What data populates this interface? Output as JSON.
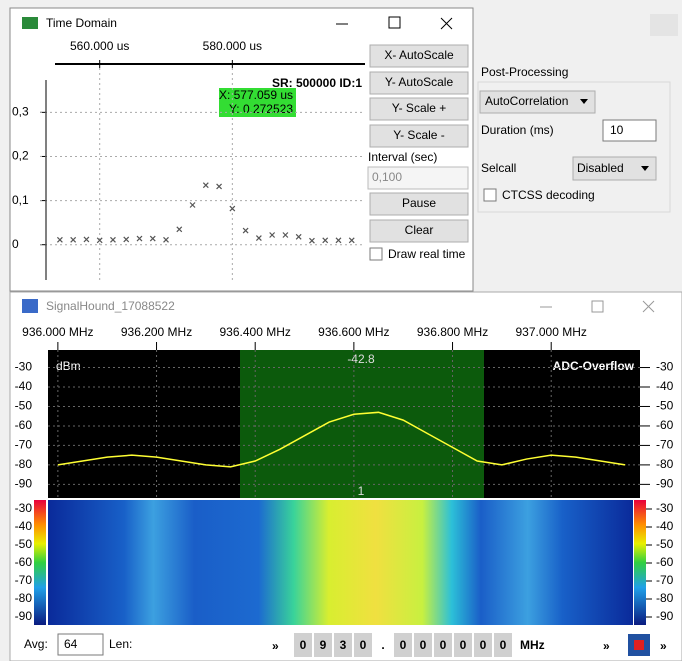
{
  "time_domain": {
    "title": "Time Domain",
    "buttons": [
      "X- AutoScale",
      "Y- AutoScale",
      "Y- Scale +",
      "Y- Scale -"
    ],
    "interval_label": "Interval (sec)",
    "interval_value": "0,100",
    "pause": "Pause",
    "clear": "Clear",
    "draw_real_time": "Draw real time",
    "sr_label": "SR: 500000 ID:1",
    "cursor_x": "X: 577.059 us",
    "cursor_y": "Y: 0.272523"
  },
  "post_processing": {
    "title": "Post-Processing",
    "mode": "AutoCorrelation",
    "duration_label": "Duration (ms)",
    "duration": "10",
    "selcall_label": "Selcall",
    "selcall": "Disabled",
    "ctcss": "CTCSS decoding"
  },
  "signalhound": {
    "title": "SignalHound_17088522",
    "unit_label": "dBm",
    "overflow": "ADC-Overflow",
    "marker": "-42.8",
    "marker_index": "1",
    "avg_label": "Avg:",
    "avg": "64",
    "len_label": "Len:",
    "freq_digits": [
      "0",
      "9",
      "3",
      "0",
      ".",
      "0",
      "0",
      "0",
      "0",
      "0",
      "0"
    ],
    "freq_unit": "MHz",
    "more": "»"
  },
  "chart_data": [
    {
      "type": "scatter",
      "color": "#555555",
      "x": [
        554,
        556,
        558,
        560,
        562,
        564,
        566,
        568,
        570,
        572,
        574,
        576,
        578,
        580,
        582,
        584,
        586,
        588,
        590,
        592,
        594,
        596,
        598
      ],
      "values": [
        0.011,
        0.011,
        0.012,
        0.01,
        0.011,
        0.012,
        0.014,
        0.014,
        0.011,
        0.035,
        0.09,
        0.135,
        0.132,
        0.082,
        0.032,
        0.015,
        0.022,
        0.022,
        0.018,
        0.009,
        0.01,
        0.01,
        0.01
      ],
      "xlim": [
        551,
        600
      ],
      "xticks": [
        {
          "value": 560,
          "label": "560.000 us"
        },
        {
          "value": 580,
          "label": "580.000 us"
        }
      ],
      "ylim": [
        -0.08,
        0.43
      ],
      "yticks": [
        0,
        {
          "value": 0.1,
          "label": "0,1"
        },
        {
          "value": 0.2,
          "label": "0,2"
        },
        {
          "value": 0.3,
          "label": "0,3"
        }
      ],
      "grid": true
    },
    {
      "type": "line",
      "color": "#ffff33",
      "x": [
        936.0,
        936.05,
        936.1,
        936.15,
        936.2,
        936.25,
        936.3,
        936.35,
        936.4,
        936.45,
        936.5,
        936.55,
        936.6,
        936.65,
        936.7,
        936.75,
        936.8,
        936.85,
        936.9,
        936.95,
        937.0,
        937.05,
        937.1,
        937.15
      ],
      "values": [
        -80,
        -78,
        -76,
        -75,
        -76,
        -78,
        -80,
        -81,
        -78,
        -72,
        -65,
        -58,
        -54,
        -53,
        -57,
        -64,
        -71,
        -78,
        -80,
        -77,
        -75,
        -76,
        -78,
        -80
      ],
      "xlim": [
        935.98,
        937.18
      ],
      "xticks": [
        {
          "value": 936.0,
          "label": "936.000 MHz"
        },
        {
          "value": 936.2,
          "label": "936.200 MHz"
        },
        {
          "value": 936.4,
          "label": "936.400 MHz"
        },
        {
          "value": 936.6,
          "label": "936.600 MHz"
        },
        {
          "value": 936.8,
          "label": "936.800 MHz"
        },
        {
          "value": 937.0,
          "label": "937.000 MHz"
        }
      ],
      "ylim": [
        -97,
        -21
      ],
      "yticks": [
        -30,
        -40,
        -50,
        -60,
        -70,
        -80,
        -90
      ],
      "grid": true
    }
  ]
}
